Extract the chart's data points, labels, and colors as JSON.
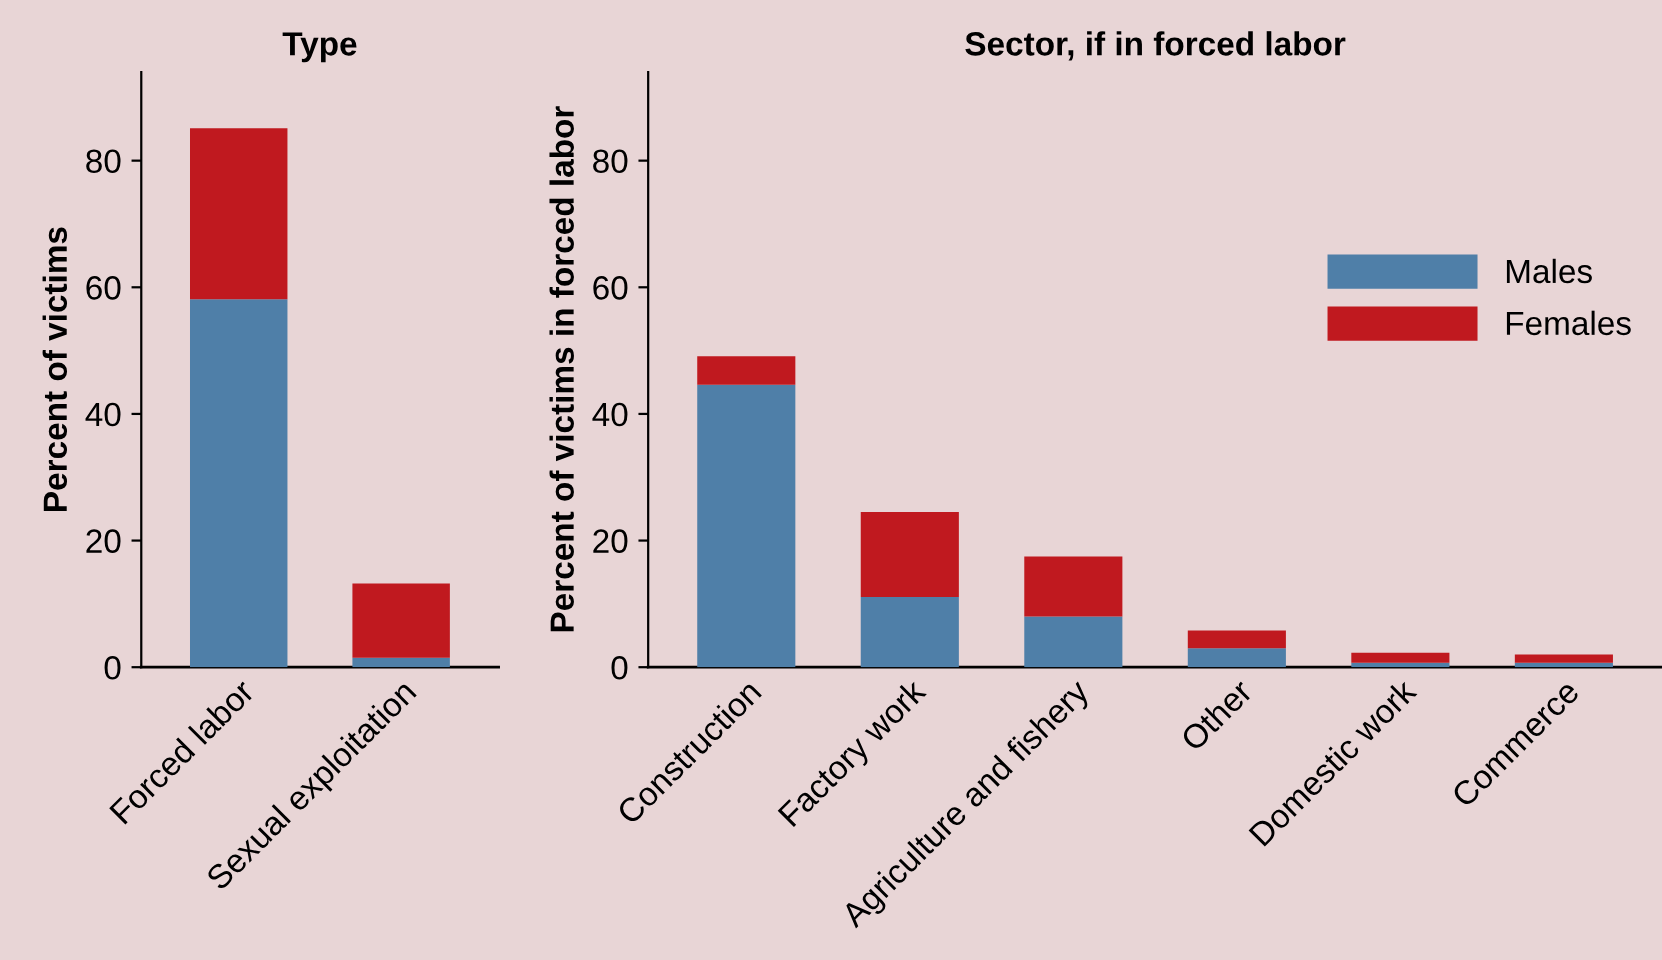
{
  "chart_data": [
    {
      "type": "bar",
      "title": "Type",
      "ylabel": "Percent of victims",
      "categories": [
        "Forced labor",
        "Sexual exploitation"
      ],
      "stacked": true,
      "series": [
        {
          "color": "#4f7fa8",
          "values": [
            58.1,
            1.5
          ]
        },
        {
          "color": "#c0191f",
          "values": [
            27.0,
            11.7
          ]
        }
      ],
      "ylim": [
        0,
        94
      ],
      "yticks": [
        0,
        20,
        40,
        60,
        80
      ],
      "grid": false
    },
    {
      "type": "bar",
      "title": "Sector, if in forced labor",
      "ylabel": "Percent of victims in forced labor",
      "categories": [
        "Construction",
        "Factory work",
        "Agriculture and fishery",
        "Other",
        "Domestic work",
        "Commerce"
      ],
      "stacked": true,
      "series": [
        {
          "name": "Males",
          "color": "#4f7fa8",
          "values": [
            44.6,
            11.1,
            8.0,
            3.0,
            0.7,
            0.7
          ]
        },
        {
          "name": "Females",
          "color": "#c0191f",
          "values": [
            4.5,
            13.4,
            9.5,
            2.8,
            1.6,
            1.3
          ]
        }
      ],
      "ylim": [
        0,
        94
      ],
      "yticks": [
        0,
        20,
        40,
        60,
        80
      ],
      "grid": false,
      "legend": "right"
    }
  ]
}
